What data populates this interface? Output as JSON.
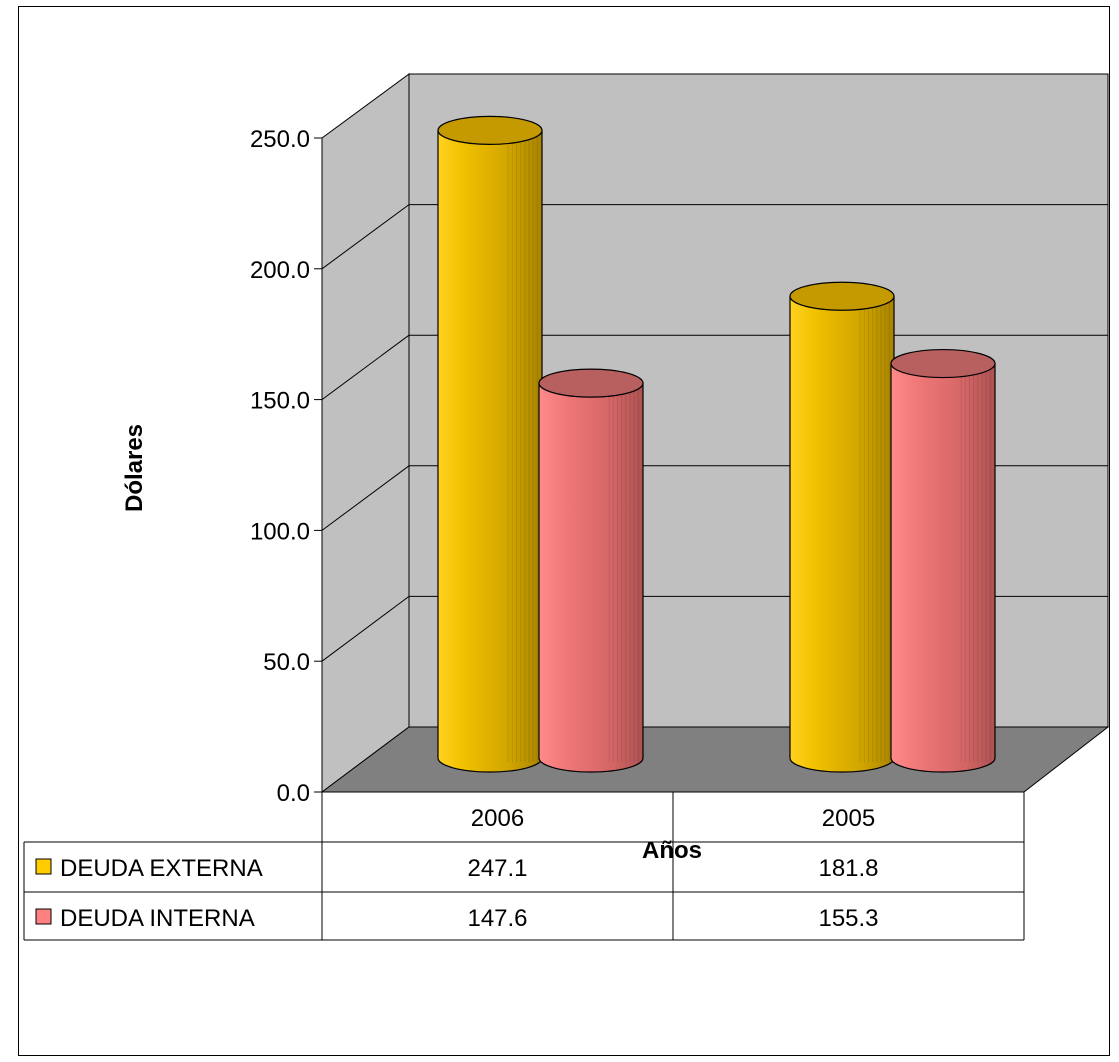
{
  "chart_data": {
    "type": "bar",
    "style": "3d-cylinder",
    "categories": [
      "2006",
      "2005"
    ],
    "series": [
      {
        "name": "DEUDA EXTERNA",
        "values": [
          247.1,
          181.8
        ],
        "color": "#FFCC00"
      },
      {
        "name": "DEUDA INTERNA",
        "values": [
          147.6,
          155.3
        ],
        "color": "#FF8080"
      }
    ],
    "values_display": [
      [
        "247.1",
        "181.8"
      ],
      [
        "147.6",
        "155.3"
      ]
    ],
    "yticks": [
      "0.0",
      "50.0",
      "100.0",
      "150.0",
      "200.0",
      "250.0"
    ],
    "ylim": [
      0,
      250
    ],
    "ylabel": "Dólares",
    "xlabel": "Años",
    "grid": true,
    "legend": "data-table-left",
    "colors": {
      "wall": "#C0C0C0",
      "floor": "#808080"
    }
  }
}
